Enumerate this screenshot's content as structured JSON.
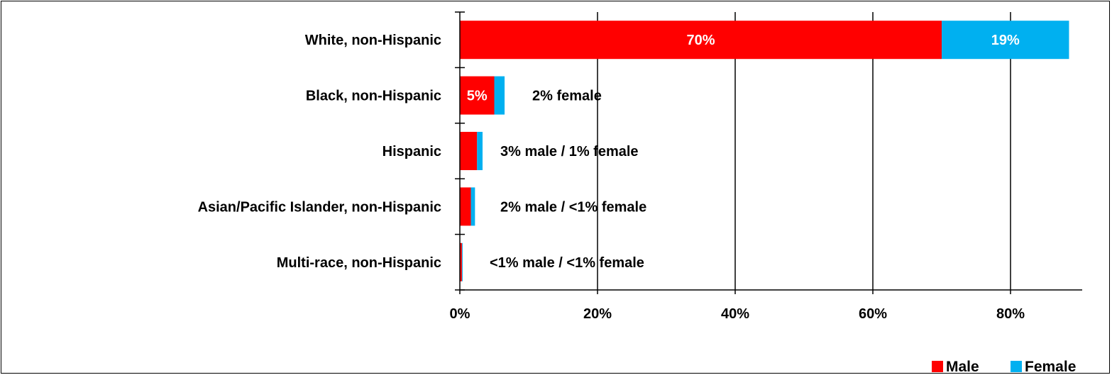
{
  "chart_data": {
    "type": "bar",
    "orientation": "horizontal",
    "stacked": true,
    "categories": [
      "White, non-Hispanic",
      "Black, non-Hispanic",
      "Hispanic",
      "Asian/Pacific Islander, non-Hispanic",
      "Multi-race, non-Hispanic"
    ],
    "series": [
      {
        "name": "Male",
        "color": "#ff0000",
        "values": [
          70,
          5,
          2.5,
          1.6,
          0.3
        ]
      },
      {
        "name": "Female",
        "color": "#00b0f0",
        "values": [
          18.5,
          1.5,
          0.8,
          0.6,
          0.1
        ]
      }
    ],
    "bar_labels": [
      {
        "male": "70%",
        "female": "19%",
        "outside": ""
      },
      {
        "male": "5%",
        "female": "",
        "outside": "2% female"
      },
      {
        "male": "",
        "female": "",
        "outside": "3% male / 1% female"
      },
      {
        "male": "",
        "female": "",
        "outside": "2% male / <1% female"
      },
      {
        "male": "",
        "female": "",
        "outside": "<1% male / <1% female"
      }
    ],
    "xticks": [
      0,
      20,
      40,
      60,
      80
    ],
    "xtick_labels": [
      "0%",
      "20%",
      "40%",
      "60%",
      "80%"
    ],
    "xlim": [
      0,
      90
    ],
    "grid": true,
    "legend_position": "bottom-right"
  },
  "legend": {
    "male": "Male",
    "female": "Female"
  }
}
